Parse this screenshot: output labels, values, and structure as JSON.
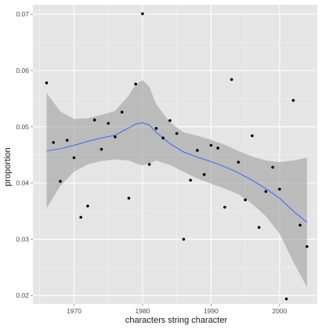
{
  "chart_data": {
    "type": "scatter",
    "title": "",
    "xlabel": "characters string character",
    "ylabel": "proportion",
    "xlim": [
      1964,
      2005.5
    ],
    "ylim": [
      0.0185,
      0.0717
    ],
    "x_ticks": [
      1970,
      1980,
      1990,
      2000
    ],
    "x_tick_labels": [
      "1970",
      "1980",
      "1990",
      "2000"
    ],
    "y_ticks": [
      0.02,
      0.03,
      0.04,
      0.05,
      0.06,
      0.07
    ],
    "y_tick_labels": [
      "0.02",
      "0.03",
      "0.04",
      "0.05",
      "0.06",
      "0.07"
    ],
    "grid": true,
    "background_color": "#e5e5e5",
    "grid_color": "#ffffff",
    "point_color": "#000000",
    "smooth_color": "#3366ff",
    "band_color": "#999999",
    "points": [
      {
        "x": 1966,
        "y": 0.0578
      },
      {
        "x": 1967,
        "y": 0.0472
      },
      {
        "x": 1968,
        "y": 0.0403
      },
      {
        "x": 1969,
        "y": 0.0476
      },
      {
        "x": 1970,
        "y": 0.0445
      },
      {
        "x": 1971,
        "y": 0.0339
      },
      {
        "x": 1972,
        "y": 0.0359
      },
      {
        "x": 1973,
        "y": 0.0512
      },
      {
        "x": 1974,
        "y": 0.046
      },
      {
        "x": 1975,
        "y": 0.0506
      },
      {
        "x": 1976,
        "y": 0.0482
      },
      {
        "x": 1977,
        "y": 0.0526
      },
      {
        "x": 1978,
        "y": 0.0373
      },
      {
        "x": 1979,
        "y": 0.0576
      },
      {
        "x": 1980,
        "y": 0.0701
      },
      {
        "x": 1981,
        "y": 0.0433
      },
      {
        "x": 1982,
        "y": 0.0497
      },
      {
        "x": 1983,
        "y": 0.048
      },
      {
        "x": 1984,
        "y": 0.0511
      },
      {
        "x": 1985,
        "y": 0.0488
      },
      {
        "x": 1986,
        "y": 0.03
      },
      {
        "x": 1987,
        "y": 0.0405
      },
      {
        "x": 1988,
        "y": 0.0458
      },
      {
        "x": 1989,
        "y": 0.0415
      },
      {
        "x": 1990,
        "y": 0.0467
      },
      {
        "x": 1991,
        "y": 0.0462
      },
      {
        "x": 1992,
        "y": 0.0357
      },
      {
        "x": 1993,
        "y": 0.0584
      },
      {
        "x": 1994,
        "y": 0.0437
      },
      {
        "x": 1995,
        "y": 0.037
      },
      {
        "x": 1996,
        "y": 0.0484
      },
      {
        "x": 1997,
        "y": 0.0321
      },
      {
        "x": 1998,
        "y": 0.0385
      },
      {
        "x": 1999,
        "y": 0.0428
      },
      {
        "x": 2000,
        "y": 0.0389
      },
      {
        "x": 2001,
        "y": 0.0194
      },
      {
        "x": 2002,
        "y": 0.0547
      },
      {
        "x": 2003,
        "y": 0.0325
      },
      {
        "x": 2004,
        "y": 0.0287
      }
    ],
    "smooth": [
      {
        "x": 1966,
        "y": 0.0457,
        "lo": 0.0355,
        "hi": 0.056
      },
      {
        "x": 1968,
        "y": 0.0461,
        "lo": 0.0395,
        "hi": 0.0527
      },
      {
        "x": 1970,
        "y": 0.0467,
        "lo": 0.042,
        "hi": 0.0514
      },
      {
        "x": 1972,
        "y": 0.0474,
        "lo": 0.0433,
        "hi": 0.0515
      },
      {
        "x": 1974,
        "y": 0.048,
        "lo": 0.0439,
        "hi": 0.0521
      },
      {
        "x": 1976,
        "y": 0.0485,
        "lo": 0.0442,
        "hi": 0.0528
      },
      {
        "x": 1978,
        "y": 0.0498,
        "lo": 0.044,
        "hi": 0.0556
      },
      {
        "x": 1979,
        "y": 0.0505,
        "lo": 0.0435,
        "hi": 0.0575
      },
      {
        "x": 1980,
        "y": 0.0507,
        "lo": 0.0431,
        "hi": 0.0583
      },
      {
        "x": 1981,
        "y": 0.0503,
        "lo": 0.0435,
        "hi": 0.0571
      },
      {
        "x": 1982,
        "y": 0.049,
        "lo": 0.044,
        "hi": 0.054
      },
      {
        "x": 1984,
        "y": 0.047,
        "lo": 0.0432,
        "hi": 0.0508
      },
      {
        "x": 1986,
        "y": 0.0455,
        "lo": 0.042,
        "hi": 0.049
      },
      {
        "x": 1988,
        "y": 0.0446,
        "lo": 0.0408,
        "hi": 0.0484
      },
      {
        "x": 1990,
        "y": 0.0438,
        "lo": 0.0399,
        "hi": 0.0477
      },
      {
        "x": 1992,
        "y": 0.0429,
        "lo": 0.039,
        "hi": 0.0468
      },
      {
        "x": 1994,
        "y": 0.0418,
        "lo": 0.038,
        "hi": 0.0457
      },
      {
        "x": 1996,
        "y": 0.0405,
        "lo": 0.0363,
        "hi": 0.0447
      },
      {
        "x": 1998,
        "y": 0.039,
        "lo": 0.0341,
        "hi": 0.044
      },
      {
        "x": 2000,
        "y": 0.0373,
        "lo": 0.031,
        "hi": 0.0437
      },
      {
        "x": 2002,
        "y": 0.035,
        "lo": 0.026,
        "hi": 0.044
      },
      {
        "x": 2004,
        "y": 0.033,
        "lo": 0.0215,
        "hi": 0.0445
      }
    ]
  }
}
